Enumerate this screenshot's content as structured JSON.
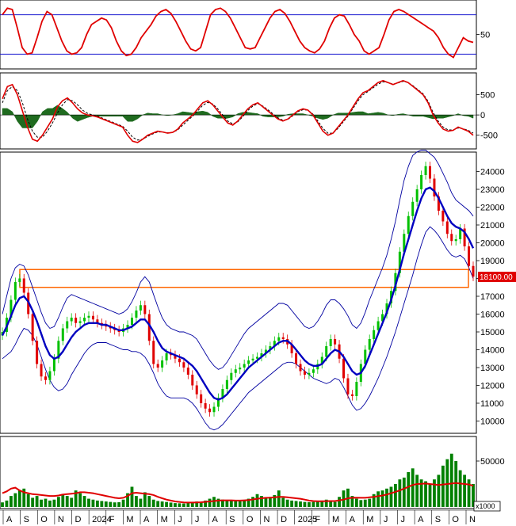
{
  "chart_data": [
    {
      "type": "line",
      "panel": "oscillator",
      "ylim": [
        0,
        100
      ],
      "y_ticks": [
        "50"
      ],
      "reference_levels": [
        80,
        20
      ],
      "series": [
        {
          "color": "#e00000",
          "values": [
            80,
            90,
            88,
            60,
            30,
            20,
            22,
            45,
            70,
            85,
            80,
            60,
            40,
            25,
            20,
            22,
            30,
            50,
            65,
            70,
            75,
            72,
            60,
            40,
            25,
            18,
            20,
            30,
            45,
            55,
            65,
            78,
            85,
            88,
            82,
            70,
            55,
            40,
            28,
            25,
            30,
            55,
            80,
            88,
            90,
            85,
            75,
            60,
            45,
            30,
            28,
            30,
            45,
            60,
            75,
            85,
            88,
            82,
            70,
            55,
            40,
            30,
            25,
            22,
            28,
            40,
            60,
            75,
            80,
            78,
            65,
            50,
            40,
            25,
            20,
            25,
            30,
            50,
            72,
            85,
            88,
            85,
            80,
            75,
            70,
            65,
            60,
            55,
            45,
            30,
            20,
            15,
            30,
            45,
            40,
            38
          ]
        }
      ]
    },
    {
      "type": "line",
      "panel": "macd",
      "ylim": [
        -800,
        1000
      ],
      "y_ticks": [
        "500",
        "0",
        "-500"
      ],
      "series": [
        {
          "color": "#e00000",
          "values": [
            400,
            700,
            750,
            500,
            100,
            -300,
            -600,
            -650,
            -500,
            -300,
            -100,
            200,
            350,
            420,
            300,
            150,
            50,
            0,
            -20,
            -50,
            -100,
            -150,
            -200,
            -250,
            -300,
            -500,
            -650,
            -680,
            -600,
            -500,
            -450,
            -400,
            -420,
            -450,
            -430,
            -350,
            -200,
            -100,
            0,
            150,
            300,
            350,
            250,
            100,
            -50,
            -200,
            -250,
            -150,
            0,
            150,
            250,
            300,
            200,
            100,
            0,
            -100,
            -150,
            -100,
            0,
            100,
            150,
            120,
            0,
            -200,
            -400,
            -500,
            -450,
            -300,
            -150,
            0,
            200,
            400,
            550,
            600,
            700,
            800,
            850,
            800,
            750,
            800,
            850,
            800,
            700,
            600,
            500,
            300,
            0,
            -200,
            -350,
            -400,
            -380,
            -300,
            -350,
            -400,
            -500
          ]
        },
        {
          "color": "#000000",
          "values": [
            300,
            600,
            700,
            600,
            300,
            -100,
            -400,
            -550,
            -550,
            -400,
            -200,
            50,
            250,
            380,
            350,
            250,
            120,
            40,
            0,
            -30,
            -80,
            -130,
            -180,
            -230,
            -280,
            -400,
            -550,
            -620,
            -600,
            -530,
            -470,
            -420,
            -420,
            -440,
            -430,
            -370,
            -250,
            -140,
            -30,
            100,
            240,
            310,
            270,
            150,
            0,
            -150,
            -220,
            -170,
            -40,
            110,
            220,
            280,
            220,
            130,
            30,
            -70,
            -130,
            -110,
            -20,
            80,
            130,
            120,
            20,
            -150,
            -330,
            -450,
            -450,
            -330,
            -180,
            -30,
            160,
            350,
            500,
            580,
            670,
            760,
            820,
            800,
            760,
            790,
            830,
            800,
            720,
            620,
            520,
            340,
            60,
            -150,
            -300,
            -370,
            -370,
            -320,
            -340,
            -380,
            -450
          ]
        }
      ]
    },
    {
      "type": "candlestick",
      "panel": "price",
      "ylim": [
        9400,
        25000
      ],
      "y_ticks": [
        "24000",
        "23000",
        "22000",
        "21000",
        "20000",
        "19000",
        "18000",
        "17000",
        "16000",
        "15000",
        "14000",
        "13000",
        "12000",
        "11000",
        "10000"
      ],
      "last_price_label": "18100.00",
      "highlight_zone": [
        17500,
        18500
      ],
      "close": [
        15000,
        15800,
        16800,
        17800,
        18000,
        17200,
        16000,
        14500,
        13200,
        12500,
        12300,
        12800,
        13500,
        14500,
        15200,
        15600,
        15800,
        15500,
        15600,
        15800,
        15900,
        15700,
        15500,
        15400,
        15300,
        15200,
        15100,
        15000,
        15200,
        15400,
        15800,
        16200,
        16500,
        16000,
        14500,
        13200,
        13000,
        13400,
        13800,
        13700,
        13500,
        13300,
        13000,
        12600,
        12000,
        11500,
        11000,
        10700,
        10500,
        10800,
        11300,
        11800,
        12300,
        12700,
        12900,
        13000,
        13200,
        13400,
        13500,
        13600,
        13800,
        14000,
        14200,
        14500,
        14700,
        14600,
        14300,
        13800,
        13200,
        12800,
        12600,
        12700,
        12900,
        13200,
        13600,
        14200,
        14600,
        14300,
        13500,
        12400,
        11500,
        11400,
        12200,
        13200,
        14000,
        14600,
        15100,
        15600,
        16000,
        16600,
        17300,
        18300,
        19500,
        20500,
        21500,
        22300,
        23000,
        23800,
        24300,
        23600,
        22600,
        21800,
        21200,
        20500,
        20100,
        20200,
        20800,
        19800,
        18700,
        18100
      ],
      "ma": [
        14800,
        15300,
        15900,
        16500,
        16900,
        17000,
        16700,
        16200,
        15600,
        14900,
        14200,
        13700,
        13500,
        13600,
        13900,
        14300,
        14700,
        15000,
        15200,
        15400,
        15500,
        15500,
        15500,
        15400,
        15400,
        15300,
        15200,
        15100,
        15100,
        15200,
        15300,
        15500,
        15700,
        15700,
        15400,
        15000,
        14500,
        14100,
        13900,
        13800,
        13700,
        13600,
        13500,
        13300,
        13100,
        12800,
        12400,
        12000,
        11600,
        11300,
        11200,
        11300,
        11500,
        11800,
        12100,
        12400,
        12700,
        13000,
        13200,
        13400,
        13600,
        13800,
        14000,
        14200,
        14400,
        14500,
        14500,
        14300,
        14000,
        13700,
        13400,
        13200,
        13100,
        13100,
        13200,
        13500,
        13800,
        14000,
        13900,
        13600,
        13200,
        12800,
        12600,
        12700,
        13100,
        13700,
        14300,
        14900,
        15500,
        16100,
        16800,
        17600,
        18500,
        19400,
        20200,
        21000,
        21800,
        22500,
        23000,
        23100,
        22900,
        22500,
        22000,
        21500,
        21100,
        20900,
        20800,
        20600,
        20200,
        19700
      ],
      "upper_band": [
        16000,
        17000,
        18000,
        18600,
        18800,
        18700,
        18200,
        17500,
        16800,
        16100,
        15500,
        15200,
        15300,
        15800,
        16400,
        16900,
        17100,
        17000,
        16900,
        16800,
        16700,
        16600,
        16500,
        16400,
        16300,
        16200,
        16100,
        16000,
        16100,
        16300,
        16700,
        17200,
        17800,
        18100,
        17800,
        17100,
        16400,
        15800,
        15400,
        15200,
        15100,
        15000,
        15000,
        14900,
        14800,
        14600,
        14200,
        13800,
        13400,
        13100,
        12900,
        13000,
        13300,
        13700,
        14100,
        14500,
        14900,
        15200,
        15400,
        15600,
        15800,
        16000,
        16200,
        16400,
        16600,
        16600,
        16500,
        16200,
        15900,
        15600,
        15300,
        15200,
        15300,
        15600,
        16000,
        16500,
        16800,
        16800,
        16600,
        16300,
        15900,
        15400,
        15200,
        15500,
        16100,
        16800,
        17400,
        18000,
        18600,
        19300,
        20200,
        21200,
        22400,
        23500,
        24300,
        24900,
        25100,
        25200,
        25200,
        25000,
        24800,
        24400,
        23900,
        23400,
        22800,
        22400,
        22200,
        22000,
        21800,
        21500
      ],
      "lower_band": [
        13500,
        13700,
        13900,
        14300,
        14800,
        15200,
        15100,
        14800,
        14300,
        13600,
        12900,
        12300,
        11900,
        11700,
        11800,
        12100,
        12600,
        13000,
        13400,
        13800,
        14100,
        14300,
        14400,
        14400,
        14400,
        14300,
        14200,
        14100,
        14000,
        14000,
        13900,
        13900,
        13800,
        13600,
        13200,
        12700,
        12100,
        11700,
        11400,
        11300,
        11300,
        11300,
        11300,
        11200,
        11000,
        10700,
        10300,
        9900,
        9600,
        9500,
        9600,
        9800,
        10100,
        10400,
        10700,
        11000,
        11300,
        11600,
        11800,
        12000,
        12200,
        12400,
        12600,
        12800,
        13000,
        13200,
        13300,
        13300,
        13200,
        13000,
        12800,
        12600,
        12400,
        12300,
        12200,
        12100,
        12200,
        12400,
        12300,
        11900,
        11400,
        10900,
        10600,
        10700,
        11000,
        11400,
        11900,
        12400,
        13000,
        13600,
        14300,
        15000,
        15800,
        16600,
        17400,
        18200,
        19100,
        19900,
        20600,
        20900,
        20700,
        20400,
        20000,
        19600,
        19300,
        19200,
        19300,
        19100,
        18600,
        18000
      ]
    },
    {
      "type": "bar",
      "panel": "volume",
      "ylim": [
        0,
        75000
      ],
      "y_ticks": [
        "50000"
      ],
      "unit_label": "x1000",
      "values": [
        5000,
        7000,
        12000,
        15000,
        18000,
        20000,
        14000,
        10000,
        12000,
        8000,
        9000,
        7000,
        8000,
        11000,
        14000,
        12000,
        10000,
        18000,
        15000,
        12000,
        9000,
        8000,
        7000,
        6500,
        6000,
        5500,
        5000,
        5200,
        8000,
        15000,
        22000,
        12000,
        9000,
        16000,
        12000,
        8000,
        6500,
        6000,
        5500,
        4800,
        4200,
        4000,
        3800,
        4500,
        5000,
        6000,
        5500,
        7000,
        9000,
        11000,
        9000,
        8000,
        7000,
        6500,
        6500,
        7000,
        7500,
        9000,
        11000,
        14000,
        12000,
        10000,
        11000,
        13000,
        18000,
        10000,
        8000,
        7000,
        6500,
        6000,
        5500,
        5200,
        5500,
        6500,
        7000,
        8000,
        6500,
        5500,
        11000,
        18000,
        20000,
        12000,
        9000,
        7500,
        8000,
        9000,
        14000,
        17000,
        18000,
        20000,
        22000,
        25000,
        30000,
        32000,
        38000,
        42000,
        35000,
        30000,
        28000,
        25000,
        30000,
        35000,
        45000,
        52000,
        58000,
        50000,
        40000,
        35000,
        30000,
        25000
      ],
      "ma": [
        15000,
        17000,
        20000,
        21000,
        18000,
        16000,
        15000,
        14000,
        13500,
        13000,
        12500,
        12000,
        12000,
        12500,
        13500,
        14000,
        14500,
        15000,
        16000,
        16000,
        15500,
        15000,
        14000,
        13000,
        12000,
        11000,
        10000,
        9500,
        10000,
        12000,
        15000,
        15500,
        15000,
        14500,
        14000,
        13000,
        11000,
        9500,
        8000,
        7000,
        6000,
        5500,
        5000,
        4800,
        4800,
        5000,
        5200,
        5600,
        6000,
        6500,
        7000,
        7200,
        7200,
        7200,
        7000,
        7000,
        7200,
        7500,
        8200,
        9000,
        9500,
        10000,
        10200,
        10500,
        11000,
        11000,
        10500,
        10000,
        9500,
        9000,
        8000,
        7000,
        6500,
        6200,
        6200,
        6400,
        6500,
        6500,
        7200,
        8000,
        9500,
        10000,
        10200,
        10000,
        10000,
        10500,
        11000,
        11800,
        12500,
        13500,
        15000,
        16500,
        18000,
        20000,
        22000,
        24000,
        25000,
        25200,
        25500,
        25000,
        24500,
        24000,
        24500,
        25000,
        25500,
        26000,
        25500,
        25000,
        24500,
        23000
      ]
    }
  ],
  "x_axis": {
    "month_labels": [
      "A",
      "S",
      "O",
      "N",
      "D",
      "2024",
      "F",
      "M",
      "A",
      "M",
      "J",
      "J",
      "A",
      "S",
      "O",
      "N",
      "D",
      "2025",
      "F",
      "M",
      "A",
      "M",
      "J",
      "J",
      "A",
      "S",
      "O",
      "N"
    ]
  },
  "colors": {
    "osc_line": "#e00000",
    "ref_line": "#1a1ad0",
    "macd_line": "#e00000",
    "signal_line": "#000000",
    "hist_fill": "#1f6b1f",
    "up_candle": "#00c000",
    "down_candle": "#e00000",
    "ma_line": "#0000c0",
    "band_line": "#0000a0",
    "highlight_box": "#ff6600",
    "price_tag_bg": "#e00000",
    "price_tag_text": "#ffffff",
    "volume_bar": "#008000",
    "volume_ma": "#e00000"
  }
}
